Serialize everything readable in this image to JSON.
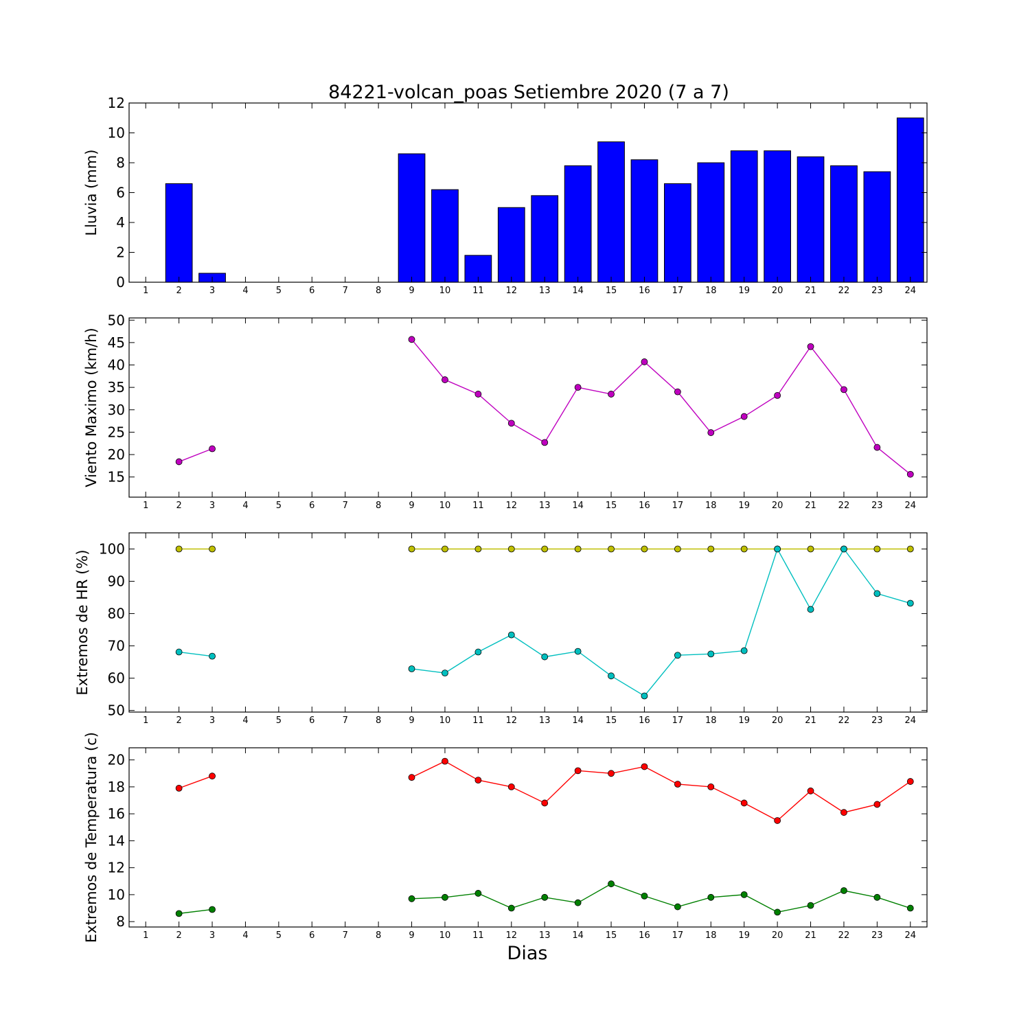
{
  "figure": {
    "title": "84221-volcan_poas Setiembre 2020  (7 a 7)",
    "xlabel": "Dias"
  },
  "chart_data": [
    {
      "type": "bar",
      "ylabel": "Lluvia (mm)",
      "ylim": [
        0,
        12
      ],
      "yticks": [
        0,
        2,
        4,
        6,
        8,
        10,
        12
      ],
      "xlim": [
        0.5,
        24.5
      ],
      "categories": [
        1,
        2,
        3,
        4,
        5,
        6,
        7,
        8,
        9,
        10,
        11,
        12,
        13,
        14,
        15,
        16,
        17,
        18,
        19,
        20,
        21,
        22,
        23,
        24
      ],
      "values": [
        null,
        6.6,
        0.6,
        null,
        null,
        null,
        null,
        null,
        8.6,
        6.2,
        1.8,
        5.0,
        5.8,
        7.8,
        9.4,
        8.2,
        6.6,
        8.0,
        8.8,
        8.8,
        8.4,
        7.8,
        7.4,
        11.0
      ],
      "color": "#0000ff",
      "grid": false
    },
    {
      "type": "line",
      "ylabel": "Viento Maximo (km/h)",
      "ylim": [
        10.5,
        50.5
      ],
      "yticks": [
        15,
        20,
        25,
        30,
        35,
        40,
        45,
        50
      ],
      "xlim": [
        0.5,
        24.5
      ],
      "x": [
        1,
        2,
        3,
        4,
        5,
        6,
        7,
        8,
        9,
        10,
        11,
        12,
        13,
        14,
        15,
        16,
        17,
        18,
        19,
        20,
        21,
        22,
        23,
        24
      ],
      "series": [
        {
          "color": "#bf00bf",
          "values": [
            null,
            18.4,
            21.3,
            null,
            null,
            null,
            null,
            null,
            45.7,
            36.7,
            33.5,
            27.0,
            22.7,
            35.0,
            33.5,
            40.7,
            34.0,
            24.9,
            28.5,
            33.2,
            44.1,
            34.5,
            21.6,
            15.6
          ]
        }
      ],
      "grid": false
    },
    {
      "type": "line",
      "ylabel": "Extremos de HR (%)",
      "ylim": [
        49.5,
        105
      ],
      "yticks": [
        50,
        60,
        70,
        80,
        90,
        100
      ],
      "xlim": [
        0.5,
        24.5
      ],
      "x": [
        1,
        2,
        3,
        4,
        5,
        6,
        7,
        8,
        9,
        10,
        11,
        12,
        13,
        14,
        15,
        16,
        17,
        18,
        19,
        20,
        21,
        22,
        23,
        24
      ],
      "series": [
        {
          "color": "#bfbf00",
          "values": [
            null,
            100,
            100,
            null,
            null,
            null,
            null,
            null,
            100,
            100,
            100,
            100,
            100,
            100,
            100,
            100,
            100,
            100,
            100,
            100,
            100,
            100,
            100,
            100
          ]
        },
        {
          "color": "#00bfbf",
          "values": [
            null,
            68.1,
            66.8,
            null,
            null,
            null,
            null,
            null,
            62.9,
            61.6,
            68.1,
            73.4,
            66.6,
            68.3,
            60.7,
            54.5,
            67.1,
            67.5,
            68.5,
            100,
            81.3,
            100,
            86.2,
            83.2
          ]
        }
      ],
      "grid": false
    },
    {
      "type": "line",
      "ylabel": "Extremos de Temperatura (c)",
      "ylim": [
        7.6,
        20.9
      ],
      "yticks": [
        8,
        10,
        12,
        14,
        16,
        18,
        20
      ],
      "xlim": [
        0.5,
        24.5
      ],
      "x": [
        1,
        2,
        3,
        4,
        5,
        6,
        7,
        8,
        9,
        10,
        11,
        12,
        13,
        14,
        15,
        16,
        17,
        18,
        19,
        20,
        21,
        22,
        23,
        24
      ],
      "series": [
        {
          "color": "#ff0000",
          "values": [
            null,
            17.9,
            18.8,
            null,
            null,
            null,
            null,
            null,
            18.7,
            19.9,
            18.5,
            18.0,
            16.8,
            19.2,
            19.0,
            19.5,
            18.2,
            18.0,
            16.8,
            15.5,
            17.7,
            16.1,
            16.7,
            18.4
          ]
        },
        {
          "color": "#008000",
          "values": [
            null,
            8.6,
            8.9,
            null,
            null,
            null,
            null,
            null,
            9.7,
            9.8,
            10.1,
            9.0,
            9.8,
            9.4,
            10.8,
            9.9,
            9.1,
            9.8,
            10.0,
            8.7,
            9.2,
            10.3,
            9.8,
            9.0
          ]
        }
      ],
      "grid": false
    }
  ]
}
